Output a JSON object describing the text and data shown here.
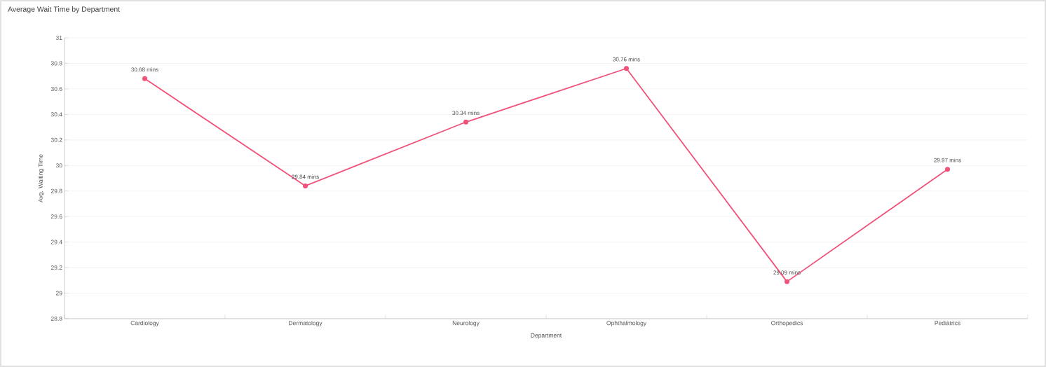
{
  "chart_data": {
    "type": "line",
    "title": "Average Wait Time by Department",
    "xlabel": "Department",
    "ylabel": "Avg. Waiting Time",
    "categories": [
      "Cardiology",
      "Dermatology",
      "Neurology",
      "Ophthalmology",
      "Orthopedics",
      "Pediatrics"
    ],
    "series": [
      {
        "color": "#f0527a",
        "values": [
          30.68,
          29.84,
          30.34,
          30.76,
          29.09,
          29.97
        ],
        "value_labels": [
          "30.68 mins",
          "29.84 mins",
          "30.34 mins",
          "30.76 mins",
          "29.09 mins",
          "29.97 mins"
        ]
      }
    ],
    "ylim": [
      28.8,
      31
    ],
    "yticks": [
      28.8,
      29,
      29.2,
      29.4,
      29.6,
      29.8,
      30,
      30.2,
      30.4,
      30.6,
      30.8,
      31
    ],
    "grid": "y",
    "marker": "circle",
    "line_style": "solid",
    "legend": false
  }
}
